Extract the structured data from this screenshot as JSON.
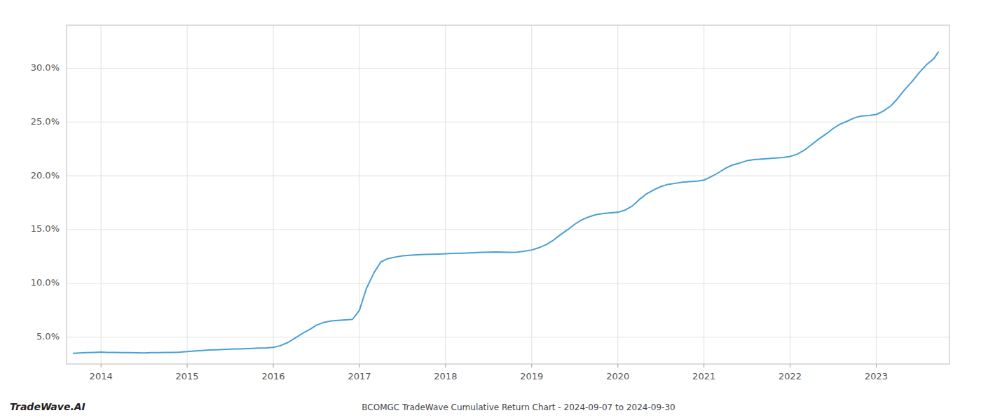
{
  "chart_data": {
    "type": "line",
    "title": "BCOMGC TradeWave Cumulative Return Chart - 2024-09-07 to 2024-09-30",
    "annotations": [
      "TradeWave.AI"
    ],
    "color": "#4a9fd4",
    "grid": true,
    "x": [
      2013.68,
      2013.75,
      2013.83,
      2013.92,
      2014.0,
      2014.08,
      2014.17,
      2014.25,
      2014.33,
      2014.42,
      2014.5,
      2014.58,
      2014.67,
      2014.75,
      2014.83,
      2014.92,
      2015.0,
      2015.08,
      2015.17,
      2015.25,
      2015.33,
      2015.42,
      2015.5,
      2015.58,
      2015.67,
      2015.75,
      2015.83,
      2015.92,
      2016.0,
      2016.08,
      2016.17,
      2016.25,
      2016.33,
      2016.42,
      2016.5,
      2016.58,
      2016.67,
      2016.75,
      2016.83,
      2016.92,
      2017.0,
      2017.08,
      2017.17,
      2017.25,
      2017.33,
      2017.42,
      2017.5,
      2017.58,
      2017.67,
      2017.75,
      2017.83,
      2017.92,
      2018.0,
      2018.08,
      2018.17,
      2018.25,
      2018.33,
      2018.42,
      2018.5,
      2018.58,
      2018.67,
      2018.75,
      2018.83,
      2018.92,
      2019.0,
      2019.08,
      2019.17,
      2019.25,
      2019.33,
      2019.42,
      2019.5,
      2019.58,
      2019.67,
      2019.75,
      2019.83,
      2019.92,
      2020.0,
      2020.08,
      2020.17,
      2020.25,
      2020.33,
      2020.42,
      2020.5,
      2020.58,
      2020.67,
      2020.75,
      2020.83,
      2020.92,
      2021.0,
      2021.08,
      2021.17,
      2021.25,
      2021.33,
      2021.42,
      2021.5,
      2021.58,
      2021.67,
      2021.75,
      2021.83,
      2021.92,
      2022.0,
      2022.08,
      2022.17,
      2022.25,
      2022.33,
      2022.42,
      2022.5,
      2022.58,
      2022.67,
      2022.75,
      2022.83,
      2022.92,
      2023.0,
      2023.08,
      2023.17,
      2023.25,
      2023.33,
      2023.42,
      2023.5,
      2023.58,
      2023.67,
      2023.72
    ],
    "values": [
      3.5,
      3.52,
      3.55,
      3.57,
      3.6,
      3.58,
      3.57,
      3.56,
      3.55,
      3.54,
      3.53,
      3.55,
      3.56,
      3.57,
      3.58,
      3.6,
      3.65,
      3.7,
      3.75,
      3.8,
      3.82,
      3.85,
      3.88,
      3.9,
      3.92,
      3.95,
      3.98,
      4.0,
      4.05,
      4.2,
      4.5,
      4.9,
      5.3,
      5.7,
      6.1,
      6.35,
      6.5,
      6.55,
      6.6,
      6.65,
      7.5,
      9.5,
      11.0,
      12.0,
      12.3,
      12.45,
      12.55,
      12.6,
      12.65,
      12.68,
      12.7,
      12.72,
      12.75,
      12.78,
      12.8,
      12.82,
      12.85,
      12.88,
      12.9,
      12.92,
      12.9,
      12.88,
      12.9,
      13.0,
      13.1,
      13.3,
      13.6,
      14.0,
      14.5,
      15.0,
      15.5,
      15.9,
      16.2,
      16.4,
      16.5,
      16.55,
      16.6,
      16.8,
      17.2,
      17.8,
      18.3,
      18.7,
      19.0,
      19.2,
      19.3,
      19.4,
      19.45,
      19.5,
      19.6,
      19.9,
      20.3,
      20.7,
      21.0,
      21.2,
      21.4,
      21.5,
      21.55,
      21.6,
      21.65,
      21.7,
      21.8,
      22.0,
      22.4,
      22.9,
      23.4,
      23.9,
      24.4,
      24.8,
      25.1,
      25.4,
      25.55,
      25.6,
      25.7,
      26.0,
      26.5,
      27.2,
      28.0,
      28.8,
      29.6,
      30.3,
      30.9,
      31.5
    ],
    "xlim": [
      2013.6,
      2023.85
    ],
    "ylim": [
      2.5,
      34.0
    ],
    "xticks": [
      2014,
      2015,
      2016,
      2017,
      2018,
      2019,
      2020,
      2021,
      2022,
      2023
    ],
    "yticks": [
      {
        "value": 5.0,
        "label": "5.0%"
      },
      {
        "value": 10.0,
        "label": "10.0%"
      },
      {
        "value": 15.0,
        "label": "15.0%"
      },
      {
        "value": 20.0,
        "label": "20.0%"
      },
      {
        "value": 25.0,
        "label": "25.0%"
      },
      {
        "value": 30.0,
        "label": "30.0%"
      }
    ]
  }
}
